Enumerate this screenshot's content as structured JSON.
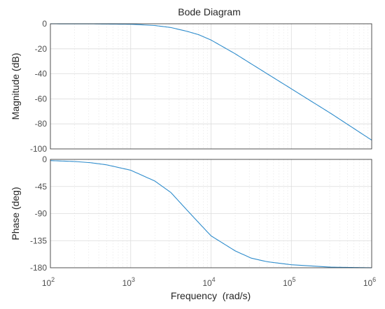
{
  "chart_data": [
    {
      "type": "line",
      "title": "Bode Diagram",
      "xlabel": "Frequency  (rad/s)",
      "ylabel": "Magnitude (dB)",
      "xscale": "log",
      "xlim": [
        100,
        1000000
      ],
      "ylim": [
        -100,
        0
      ],
      "yticks": [
        0,
        -20,
        -40,
        -60,
        -80,
        -100
      ],
      "ytick_labels": [
        "0",
        "-20",
        "-40",
        "-60",
        "-80",
        "-100"
      ],
      "grid": true,
      "color": "#2e8ccc",
      "x": [
        100,
        316,
        1000,
        2000,
        3160,
        5000,
        7000,
        10000,
        20000,
        31600,
        100000,
        316000,
        1000000
      ],
      "y": [
        0,
        -0.05,
        -0.4,
        -1.4,
        -3,
        -6,
        -8.7,
        -13,
        -24,
        -32,
        -52,
        -72,
        -93
      ]
    },
    {
      "type": "line",
      "xlabel": "Frequency  (rad/s)",
      "ylabel": "Phase (deg)",
      "xscale": "log",
      "xlim": [
        100,
        1000000
      ],
      "ylim": [
        -180,
        0
      ],
      "yticks": [
        0,
        -45,
        -90,
        -135,
        -180
      ],
      "ytick_labels": [
        "0",
        "-45",
        "-90",
        "-135",
        "-180"
      ],
      "xtick_labels": [
        {
          "base": "10",
          "exp": "2"
        },
        {
          "base": "10",
          "exp": "3"
        },
        {
          "base": "10",
          "exp": "4"
        },
        {
          "base": "10",
          "exp": "5"
        },
        {
          "base": "10",
          "exp": "6"
        }
      ],
      "grid": true,
      "color": "#2e8ccc",
      "x": [
        100,
        200,
        316,
        500,
        1000,
        2000,
        3160,
        5000,
        7000,
        10000,
        20000,
        31600,
        50000,
        100000,
        316000,
        1000000
      ],
      "y": [
        -2,
        -3.5,
        -5.5,
        -9,
        -18,
        -36,
        -55,
        -84,
        -105,
        -127,
        -152,
        -164,
        -170,
        -175,
        -179,
        -180
      ]
    }
  ]
}
